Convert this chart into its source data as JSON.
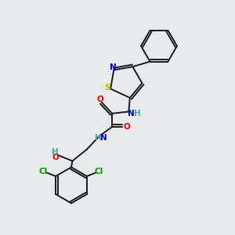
{
  "bg_color": "#e8eaec",
  "bond_color": "#1a1a1a",
  "atom_colors": {
    "N": "#0000dd",
    "O": "#ee0000",
    "S": "#bbbb00",
    "Cl": "#009900",
    "H": "#44aaaa",
    "C": "#1a1a1a"
  },
  "lw": 1.4
}
